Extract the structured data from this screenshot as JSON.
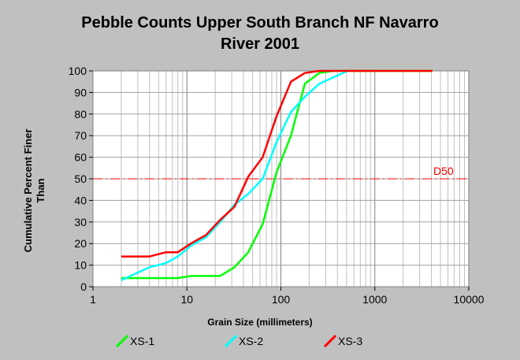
{
  "chart_data": {
    "type": "line",
    "title_line1": "Pebble Counts Upper South Branch NF Navarro",
    "title_line2": "River 2001",
    "xlabel": "Grain Size (millimeters)",
    "ylabel_line1": "Cumulative Percent Finer",
    "ylabel_line2": "Than",
    "x_scale": "log",
    "xlim": [
      1,
      10000
    ],
    "ylim": [
      0,
      100
    ],
    "x_ticks": [
      1,
      10,
      100,
      1000,
      10000
    ],
    "y_ticks": [
      0,
      10,
      20,
      30,
      40,
      50,
      60,
      70,
      80,
      90,
      100
    ],
    "grid": true,
    "legend_position": "bottom",
    "reference_line": {
      "label": "D50",
      "y": 50,
      "color": "#ff0000"
    },
    "series": [
      {
        "name": "XS-1",
        "color": "#00ff00",
        "x": [
          2,
          4,
          8,
          11,
          16,
          22.6,
          32,
          45,
          64,
          90,
          128,
          180,
          256,
          362,
          512,
          4096
        ],
        "y": [
          4,
          4,
          4,
          5,
          5,
          5,
          9,
          16,
          29,
          53,
          70,
          94,
          99,
          100,
          100,
          100
        ]
      },
      {
        "name": "XS-2",
        "color": "#00ffff",
        "x": [
          2,
          4,
          6,
          8,
          11,
          16,
          22.6,
          32,
          45,
          64,
          90,
          128,
          180,
          256,
          362,
          512
        ],
        "y": [
          3,
          9,
          11,
          14,
          19,
          23,
          30,
          38,
          43,
          50,
          67,
          81,
          88,
          94,
          97,
          100
        ]
      },
      {
        "name": "XS-3",
        "color": "#ff0000",
        "x": [
          2,
          4,
          6,
          8,
          11,
          16,
          22.6,
          32,
          45,
          64,
          90,
          128,
          180,
          256,
          362,
          512,
          4096
        ],
        "y": [
          14,
          14,
          16,
          16,
          20,
          24,
          31,
          37,
          51,
          60,
          79,
          95,
          99,
          100,
          100,
          100,
          100
        ]
      }
    ]
  }
}
